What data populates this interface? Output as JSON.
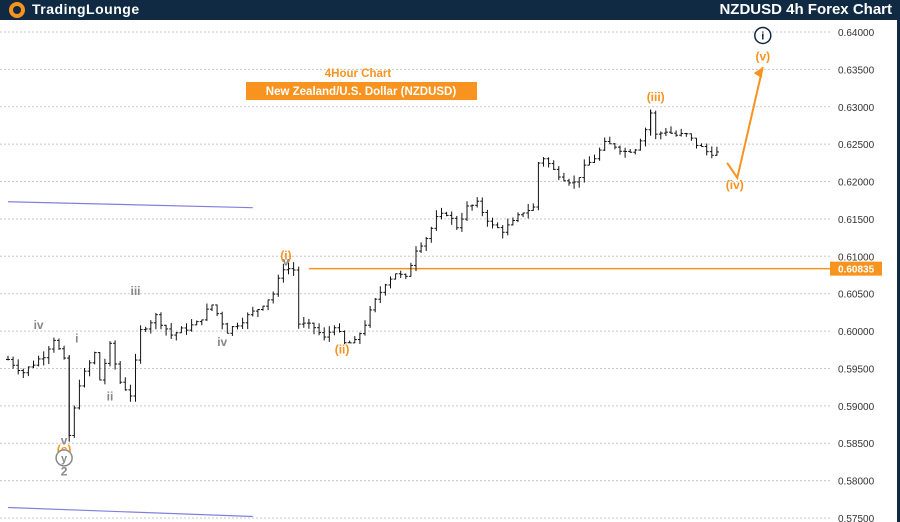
{
  "header": {
    "brand_part1": "TradingLounge",
    "brand_part2": "",
    "title": "NZDUSD 4h Forex Chart"
  },
  "chart_data": {
    "type": "candlestick",
    "title": "4Hour Chart",
    "subtitle": "New Zealand/U.S. Dollar (NZDUSD)",
    "ylim": [
      0.575,
      0.6425
    ],
    "y_ticks": [
      "0.64000",
      "0.63500",
      "0.63000",
      "0.62500",
      "0.62000",
      "0.61500",
      "0.61000",
      "0.60500",
      "0.60000",
      "0.59500",
      "0.59000",
      "0.58500",
      "0.58000",
      "0.57500"
    ],
    "grid": true,
    "price_line": {
      "value": 0.60835,
      "label": "0.60835"
    },
    "colors": {
      "accent": "#f7931e",
      "wave_gray": "#888888",
      "navy": "#102a43",
      "channel": "#6b6bd6",
      "grid": "#c8c8c8"
    },
    "price_path": [
      [
        0,
        0.5962
      ],
      [
        3,
        0.5945
      ],
      [
        7,
        0.5968
      ],
      [
        9,
        0.599
      ],
      [
        11,
        0.596
      ],
      [
        12,
        0.586
      ],
      [
        14,
        0.593
      ],
      [
        17,
        0.597
      ],
      [
        18,
        0.5935
      ],
      [
        20,
        0.598
      ],
      [
        22,
        0.5932
      ],
      [
        24,
        0.5915
      ],
      [
        26,
        0.6
      ],
      [
        29,
        0.602
      ],
      [
        32,
        0.5995
      ],
      [
        37,
        0.601
      ],
      [
        40,
        0.6035
      ],
      [
        43,
        0.6
      ],
      [
        46,
        0.6015
      ],
      [
        49,
        0.603
      ],
      [
        52,
        0.605
      ],
      [
        54,
        0.6085
      ],
      [
        56,
        0.6082
      ],
      [
        57,
        0.601
      ],
      [
        60,
        0.6005
      ],
      [
        62,
        0.599
      ],
      [
        64,
        0.6008
      ],
      [
        66,
        0.5983
      ],
      [
        68,
        0.5985
      ],
      [
        70,
        0.601
      ],
      [
        72,
        0.604
      ],
      [
        74,
        0.6065
      ],
      [
        76,
        0.6078
      ],
      [
        78,
        0.607
      ],
      [
        80,
        0.611
      ],
      [
        82,
        0.6125
      ],
      [
        84,
        0.615
      ],
      [
        86,
        0.6158
      ],
      [
        88,
        0.614
      ],
      [
        90,
        0.6165
      ],
      [
        92,
        0.617
      ],
      [
        95,
        0.614
      ],
      [
        97,
        0.6135
      ],
      [
        99,
        0.6145
      ],
      [
        101,
        0.616
      ],
      [
        103,
        0.6165
      ],
      [
        104,
        0.6225
      ],
      [
        105,
        0.6232
      ],
      [
        107,
        0.6215
      ],
      [
        109,
        0.6205
      ],
      [
        111,
        0.6198
      ],
      [
        113,
        0.6218
      ],
      [
        115,
        0.6232
      ],
      [
        117,
        0.625
      ],
      [
        119,
        0.6248
      ],
      [
        121,
        0.624
      ],
      [
        123,
        0.6245
      ],
      [
        125,
        0.627
      ],
      [
        126,
        0.6292
      ],
      [
        127,
        0.6262
      ],
      [
        129,
        0.6268
      ],
      [
        131,
        0.6262
      ],
      [
        133,
        0.6262
      ],
      [
        135,
        0.625
      ],
      [
        137,
        0.624
      ],
      [
        139,
        0.6238
      ]
    ],
    "projection": [
      [
        141,
        0.6225
      ],
      [
        143,
        0.6205
      ],
      [
        148,
        0.6353
      ]
    ],
    "upper_channel": [
      [
        0,
        0.6173
      ],
      [
        48,
        0.6165
      ]
    ],
    "lower_channel": [
      [
        0,
        0.5764
      ],
      [
        48,
        0.5752
      ]
    ],
    "wave_labels": [
      {
        "text": "iv",
        "x": 6,
        "y": 0.6003,
        "color": "gray"
      },
      {
        "text": "i",
        "x": 13.5,
        "y": 0.5985,
        "color": "gray"
      },
      {
        "text": "iii",
        "x": 25,
        "y": 0.6048,
        "color": "gray"
      },
      {
        "text": "ii",
        "x": 20,
        "y": 0.5907,
        "color": "gray"
      },
      {
        "text": "iv",
        "x": 42,
        "y": 0.598,
        "color": "gray"
      },
      {
        "text": "v",
        "x": 11,
        "y": 0.5848,
        "color": "gray"
      },
      {
        "text": "(c)",
        "x": 11,
        "y": 0.5836,
        "color": "orange"
      },
      {
        "text": "y",
        "x": 11,
        "y": 0.5825,
        "color": "gray",
        "circled": true
      },
      {
        "text": "2",
        "x": 11,
        "y": 0.5807,
        "color": "gray"
      },
      {
        "text": "(i)",
        "x": 54.5,
        "y": 0.6096,
        "color": "orange"
      },
      {
        "text": "v",
        "x": 54.5,
        "y": 0.6088,
        "color": "gray"
      },
      {
        "text": "(ii)",
        "x": 65.5,
        "y": 0.597,
        "color": "orange"
      },
      {
        "text": "(iii)",
        "x": 127,
        "y": 0.6308,
        "color": "orange"
      },
      {
        "text": "(iv)",
        "x": 142.5,
        "y": 0.619,
        "color": "orange"
      },
      {
        "text": "(v)",
        "x": 148,
        "y": 0.6362,
        "color": "orange"
      },
      {
        "text": "i",
        "x": 148,
        "y": 0.639,
        "color": "navy",
        "circled": true
      }
    ]
  }
}
